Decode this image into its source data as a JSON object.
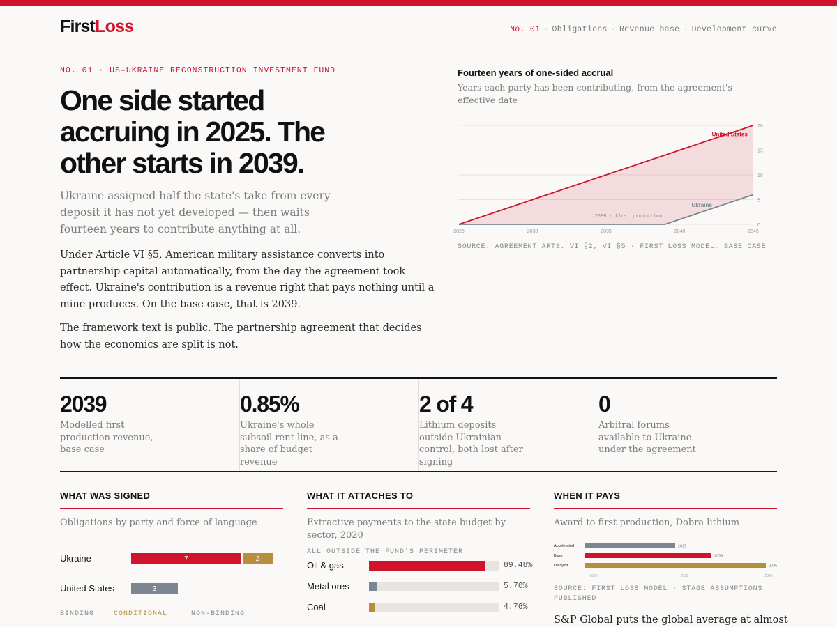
{
  "brand": {
    "logo_part1": "First",
    "logo_part2": "Loss",
    "accent": "#d0142b"
  },
  "nav": {
    "current": "No. 01",
    "items": [
      "Obligations",
      "Revenue base",
      "Development curve"
    ],
    "separator": "·"
  },
  "article": {
    "kicker": "NO. 01 · US–UKRAINE RECONSTRUCTION INVESTMENT FUND",
    "headline": "One side started accruing in 2025. The other starts in 2039.",
    "deck": "Ukraine assigned half the state's take from every deposit it has not yet developed — then waits fourteen years to contribute anything at all.",
    "paragraphs": [
      "Under Article VI §5, American military assistance converts into partnership capital automatically, from the day the agreement took effect. Ukraine's contribution is a revenue right that pays nothing until a mine produces. On the base case, that is 2039.",
      "The framework text is public. The partnership agreement that decides how the economics are split is not."
    ]
  },
  "accrual_chart": {
    "title": "Fourteen years of one-sided accrual",
    "subtitle": "Years each party has been contributing, from the agreement's effective date",
    "source": "SOURCE: AGREEMENT ARTS. VI §2, VI §5 · FIRST LOSS MODEL, BASE CASE",
    "annotation": "2039 · first production"
  },
  "chart_data": [
    {
      "type": "area",
      "x": [
        2025,
        2030,
        2035,
        2039,
        2040,
        2045
      ],
      "series": [
        {
          "name": "United States",
          "values": [
            0,
            5,
            10,
            14,
            15,
            20
          ],
          "color": "#d0142b"
        },
        {
          "name": "Ukraine",
          "values": [
            0,
            0,
            0,
            0,
            1,
            6
          ],
          "color": "#7c8690"
        }
      ],
      "xticks": [
        "2025",
        "2030",
        "2035",
        "2040",
        "2045"
      ],
      "yticks": [
        "0",
        "5",
        "10",
        "15",
        "20"
      ],
      "xlim": [
        2025,
        2045
      ],
      "ylim": [
        0,
        20
      ],
      "marker_x": 2039,
      "grid": true,
      "y_axis_side": "right"
    },
    {
      "type": "bar",
      "orientation": "horizontal",
      "categories": [
        "Accelerated",
        "Base",
        "Delayed"
      ],
      "values": [
        2035,
        2039,
        2045
      ],
      "value_labels": [
        "2035",
        "2039",
        "2045"
      ],
      "colors": [
        "#7c8690",
        "#d0142b",
        "#b58f3e"
      ],
      "xlim": [
        2025,
        2045
      ],
      "xticks": [
        "2026",
        "2036",
        "2046"
      ]
    }
  ],
  "stats": [
    {
      "value": "2039",
      "label": "Modelled first production revenue, base case"
    },
    {
      "value": "0.85%",
      "label": "Ukraine's whole subsoil rent line, as a share of budget revenue"
    },
    {
      "value": "2 of 4",
      "label": "Lithium deposits outside Ukrainian control, both lost after signing"
    },
    {
      "value": "0",
      "label": "Arbitral forums available to Ukraine under the agreement"
    }
  ],
  "signed": {
    "title": "WHAT WAS SIGNED",
    "subtitle": "Obligations by party and force of language",
    "parties": [
      {
        "name": "Ukraine",
        "binding": 7,
        "conditional": 2,
        "nonbinding": 0
      },
      {
        "name": "United States",
        "binding": 0,
        "conditional": 0,
        "nonbinding": 3
      }
    ],
    "legend": [
      "BINDING",
      "CONDITIONAL",
      "NON-BINDING"
    ],
    "colors": {
      "binding": "#d0142b",
      "conditional": "#b58f3e",
      "nonbinding": "#7c8690"
    }
  },
  "attaches": {
    "title": "WHAT IT ATTACHES TO",
    "subtitle": "Extractive payments to the state budget by sector, 2020",
    "note": "ALL OUTSIDE THE FUND'S PERIMETER",
    "sectors": [
      {
        "name": "Oil & gas",
        "pct": 89.48,
        "label": "89.48%",
        "color": "#d0142b"
      },
      {
        "name": "Metal ores",
        "pct": 5.76,
        "label": "5.76%",
        "color": "#7c8690"
      },
      {
        "name": "Coal",
        "pct": 4.76,
        "label": "4.76%",
        "color": "#b58f3e"
      }
    ]
  },
  "pays": {
    "title": "WHEN IT PAYS",
    "subtitle": "Award to first production, Dobra lithium",
    "source": "SOURCE: FIRST LOSS MODEL · STAGE ASSUMPTIONS PUBLISHED",
    "text": "S&P Global puts the global average at almost"
  }
}
